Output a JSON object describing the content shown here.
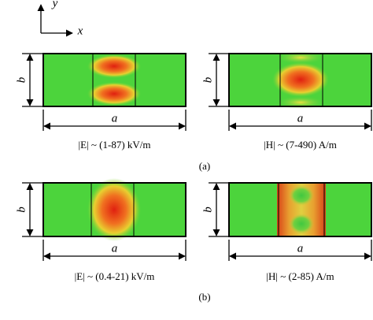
{
  "axes": {
    "y": "y",
    "x": "x"
  },
  "panels": [
    {
      "label": "(a)",
      "left": {
        "height_label": "b",
        "width_label": "a",
        "caption": "|E| ~ (1-87) kV/m"
      },
      "right": {
        "height_label": "b",
        "width_label": "a",
        "caption": "|H| ~ (7-490) A/m"
      }
    },
    {
      "label": "(b)",
      "left": {
        "height_label": "b",
        "width_label": "a",
        "caption": "|E| ~ (0.4-21) kV/m"
      },
      "right": {
        "height_label": "b",
        "width_label": "a",
        "caption": "|H| ~ (2-85) A/m"
      }
    }
  ]
}
